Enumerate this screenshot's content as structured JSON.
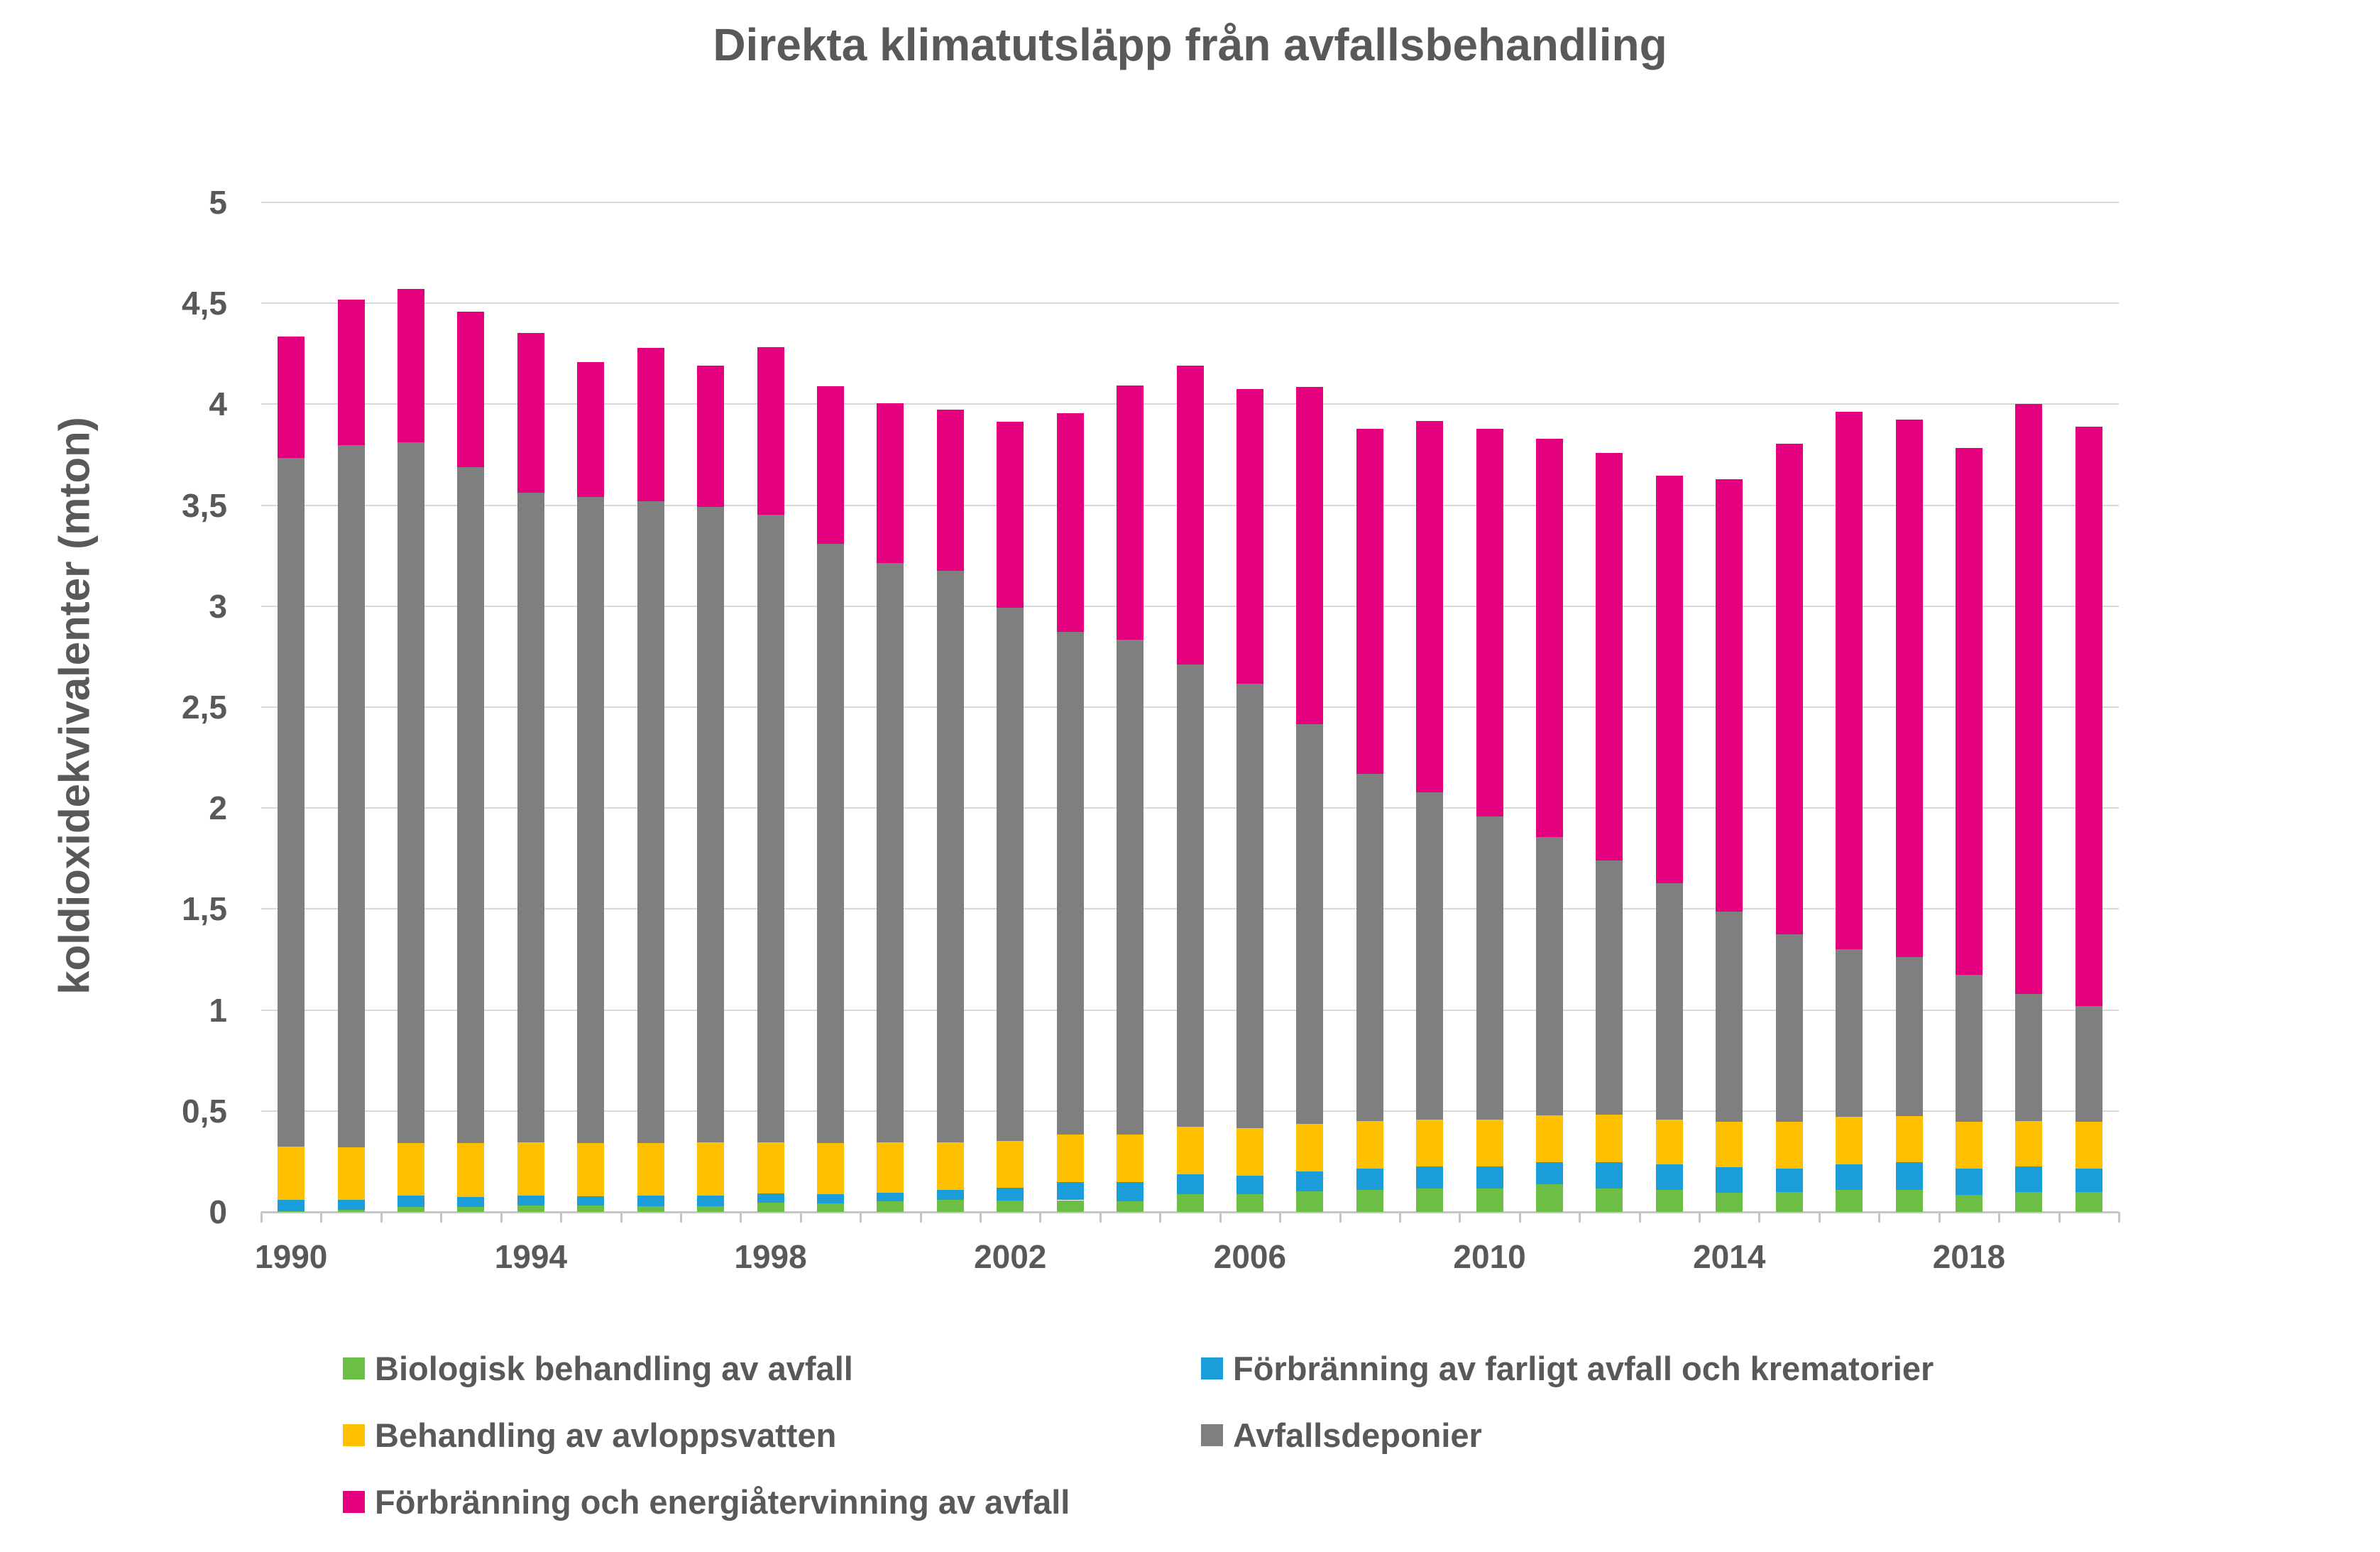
{
  "title": "Direkta klimatutsläpp från avfallsbehandling",
  "y_axis": {
    "label": "koldioxidekvivalenter (mton)",
    "tick_labels": [
      "0",
      "0,5",
      "1",
      "1,5",
      "2",
      "2,5",
      "3",
      "3,5",
      "4",
      "4,5",
      "5"
    ],
    "tick_values": [
      0,
      0.5,
      1,
      1.5,
      2,
      2.5,
      3,
      3.5,
      4,
      4.5,
      5
    ]
  },
  "x_axis": {
    "shown_tick_labels": [
      "1990",
      "1994",
      "1998",
      "2002",
      "2006",
      "2010",
      "2014",
      "2018"
    ],
    "label_every_n_years": 4
  },
  "colors": {
    "green": "#6cbe45",
    "blue": "#1a9dd9",
    "yellow": "#ffc000",
    "gray": "#7f7f7f",
    "pink": "#e5017d",
    "text": "#595959",
    "gridline": "#d9d9d9",
    "axis": "#c6c6c6"
  },
  "legend": [
    {
      "label": "Biologisk behandling av avfall",
      "color_key": "green"
    },
    {
      "label": "Förbränning av farligt avfall och krematorier",
      "color_key": "blue"
    },
    {
      "label": "Behandling av avloppsvatten",
      "color_key": "yellow"
    },
    {
      "label": "Avfallsdeponier",
      "color_key": "gray"
    },
    {
      "label": "Förbränning och energiåtervinning av avfall",
      "color_key": "pink"
    }
  ],
  "chart_data": {
    "type": "bar",
    "stacked": true,
    "grid": true,
    "legend_position": "bottom",
    "ylim": [
      0,
      5
    ],
    "ylabel": "koldioxidekvivalenter (mton)",
    "xlabel": "",
    "categories": [
      "1990",
      "1991",
      "1992",
      "1993",
      "1994",
      "1995",
      "1996",
      "1997",
      "1998",
      "1999",
      "2000",
      "2001",
      "2002",
      "2003",
      "2004",
      "2005",
      "2006",
      "2007",
      "2008",
      "2009",
      "2010",
      "2011",
      "2012",
      "2013",
      "2014",
      "2015",
      "2016",
      "2017",
      "2018",
      "2019",
      "2020"
    ],
    "series": [
      {
        "name": "Biologisk behandling av avfall",
        "color_key": "green",
        "values": [
          0.005,
          0.012,
          0.026,
          0.023,
          0.033,
          0.032,
          0.029,
          0.029,
          0.045,
          0.041,
          0.052,
          0.06,
          0.057,
          0.058,
          0.052,
          0.089,
          0.087,
          0.101,
          0.109,
          0.117,
          0.116,
          0.137,
          0.116,
          0.108,
          0.094,
          0.097,
          0.11,
          0.108,
          0.085,
          0.097,
          0.097
        ]
      },
      {
        "name": "Förbränning av farligt avfall och krematorier",
        "color_key": "blue",
        "values": [
          0.055,
          0.049,
          0.054,
          0.05,
          0.049,
          0.044,
          0.053,
          0.053,
          0.047,
          0.047,
          0.043,
          0.05,
          0.061,
          0.089,
          0.095,
          0.098,
          0.092,
          0.098,
          0.107,
          0.107,
          0.108,
          0.108,
          0.129,
          0.128,
          0.128,
          0.118,
          0.126,
          0.137,
          0.13,
          0.127,
          0.118
        ]
      },
      {
        "name": "Behandling av avloppsvatten",
        "color_key": "yellow",
        "values": [
          0.265,
          0.258,
          0.26,
          0.267,
          0.261,
          0.264,
          0.258,
          0.261,
          0.251,
          0.252,
          0.249,
          0.234,
          0.235,
          0.237,
          0.237,
          0.235,
          0.236,
          0.237,
          0.234,
          0.233,
          0.233,
          0.233,
          0.235,
          0.221,
          0.226,
          0.23,
          0.235,
          0.229,
          0.23,
          0.227,
          0.233
        ]
      },
      {
        "name": "Avfallsdeponier",
        "color_key": "gray",
        "values": [
          3.41,
          3.48,
          3.47,
          3.35,
          3.22,
          3.2,
          3.18,
          3.15,
          3.11,
          2.97,
          2.87,
          2.83,
          2.64,
          2.49,
          2.45,
          2.29,
          2.2,
          1.98,
          1.72,
          1.62,
          1.5,
          1.38,
          1.26,
          1.17,
          1.04,
          0.93,
          0.83,
          0.79,
          0.73,
          0.63,
          0.57
        ]
      },
      {
        "name": "Förbränning och energiåtervinning av avfall",
        "color_key": "pink",
        "values": [
          0.6,
          0.72,
          0.76,
          0.77,
          0.79,
          0.67,
          0.76,
          0.7,
          0.83,
          0.78,
          0.79,
          0.8,
          0.92,
          1.08,
          1.26,
          1.48,
          1.46,
          1.67,
          1.71,
          1.84,
          1.92,
          1.97,
          2.02,
          2.02,
          2.14,
          2.43,
          2.66,
          2.66,
          2.61,
          2.92,
          2.87
        ]
      }
    ]
  }
}
